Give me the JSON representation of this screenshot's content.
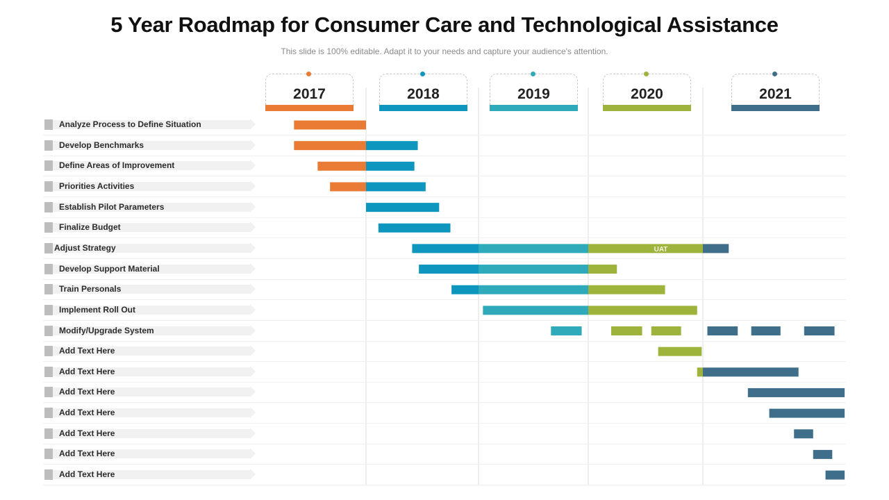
{
  "title": "5 Year Roadmap for Consumer Care and Technological Assistance",
  "subtitle": "This slide is 100% editable. Adapt it to your needs and capture your audience's attention.",
  "chart_data": {
    "type": "gantt",
    "title": "5 Year Roadmap for Consumer Care and Technological Assistance",
    "x_unit": "year",
    "xlim": [
      2017,
      2022.3
    ],
    "grid": "vertical lines at year boundaries 2018, 2019, 2020, 2021",
    "years": [
      {
        "label": "2017",
        "color": "#E97B34"
      },
      {
        "label": "2018",
        "color": "#0E96BE"
      },
      {
        "label": "2019",
        "color": "#2FAABB"
      },
      {
        "label": "2020",
        "color": "#9DB33C"
      },
      {
        "label": "2021",
        "color": "#3E6E8A"
      }
    ],
    "tasks": [
      {
        "label": "Analyze Process to Define Situation",
        "segments": [
          {
            "start": 2017.36,
            "end": 2018.0,
            "color": "#E97B34"
          }
        ]
      },
      {
        "label": "Develop Benchmarks",
        "segments": [
          {
            "start": 2017.36,
            "end": 2018.0,
            "color": "#E97B34"
          },
          {
            "start": 2018.0,
            "end": 2018.46,
            "color": "#0E96BE"
          }
        ]
      },
      {
        "label": "Define Areas of Improvement",
        "segments": [
          {
            "start": 2017.57,
            "end": 2018.0,
            "color": "#E97B34"
          },
          {
            "start": 2018.0,
            "end": 2018.43,
            "color": "#0E96BE"
          }
        ]
      },
      {
        "label": "Priorities Activities",
        "segments": [
          {
            "start": 2017.68,
            "end": 2018.0,
            "color": "#E97B34"
          },
          {
            "start": 2018.0,
            "end": 2018.53,
            "color": "#0E96BE"
          }
        ]
      },
      {
        "label": "Establish Pilot Parameters",
        "segments": [
          {
            "start": 2018.0,
            "end": 2018.65,
            "color": "#0E96BE"
          }
        ]
      },
      {
        "label": "Finalize Budget",
        "segments": [
          {
            "start": 2018.11,
            "end": 2018.75,
            "color": "#0E96BE"
          }
        ]
      },
      {
        "label": "Adjust Strategy",
        "segments": [
          {
            "start": 2018.41,
            "end": 2019.0,
            "color": "#0E96BE"
          },
          {
            "start": 2019.0,
            "end": 2020.0,
            "color": "#2FAABB"
          },
          {
            "start": 2020.0,
            "end": 2021.0,
            "color": "#9DB33C",
            "text": "UAT"
          },
          {
            "start": 2021.0,
            "end": 2021.23,
            "color": "#3E6E8A"
          }
        ]
      },
      {
        "label": "Develop Support Material",
        "segments": [
          {
            "start": 2018.47,
            "end": 2019.0,
            "color": "#0E96BE"
          },
          {
            "start": 2019.0,
            "end": 2020.0,
            "color": "#2FAABB"
          },
          {
            "start": 2020.0,
            "end": 2020.25,
            "color": "#9DB33C"
          }
        ]
      },
      {
        "label": "Train Personals",
        "segments": [
          {
            "start": 2018.76,
            "end": 2019.0,
            "color": "#0E96BE"
          },
          {
            "start": 2019.0,
            "end": 2020.0,
            "color": "#2FAABB"
          },
          {
            "start": 2020.0,
            "end": 2020.67,
            "color": "#9DB33C"
          }
        ]
      },
      {
        "label": "Implement Roll Out",
        "segments": [
          {
            "start": 2019.04,
            "end": 2020.0,
            "color": "#2FAABB"
          },
          {
            "start": 2020.0,
            "end": 2020.95,
            "color": "#9DB33C"
          }
        ]
      },
      {
        "label": "Modify/Upgrade  System",
        "segments": [
          {
            "start": 2019.66,
            "end": 2019.94,
            "color": "#2FAABB"
          },
          {
            "start": 2020.2,
            "end": 2020.47,
            "color": "#9DB33C"
          },
          {
            "start": 2020.55,
            "end": 2020.81,
            "color": "#9DB33C"
          },
          {
            "start": 2021.04,
            "end": 2021.31,
            "color": "#3E6E8A"
          },
          {
            "start": 2021.43,
            "end": 2021.69,
            "color": "#3E6E8A"
          },
          {
            "start": 2021.9,
            "end": 2022.17,
            "color": "#3E6E8A"
          }
        ]
      },
      {
        "label": "Add Text Here",
        "segments": [
          {
            "start": 2020.61,
            "end": 2020.99,
            "color": "#9DB33C"
          }
        ]
      },
      {
        "label": "Add Text Here",
        "segments": [
          {
            "start": 2020.95,
            "end": 2021.0,
            "color": "#9DB33C"
          },
          {
            "start": 2021.0,
            "end": 2021.85,
            "color": "#3E6E8A"
          }
        ]
      },
      {
        "label": "Add Text Here",
        "segments": [
          {
            "start": 2021.4,
            "end": 2022.26,
            "color": "#3E6E8A"
          }
        ]
      },
      {
        "label": "Add Text Here",
        "segments": [
          {
            "start": 2021.59,
            "end": 2022.26,
            "color": "#3E6E8A"
          }
        ]
      },
      {
        "label": "Add Text Here",
        "segments": [
          {
            "start": 2021.81,
            "end": 2021.98,
            "color": "#3E6E8A"
          }
        ]
      },
      {
        "label": "Add Text Here",
        "segments": [
          {
            "start": 2021.98,
            "end": 2022.15,
            "color": "#3E6E8A"
          }
        ]
      },
      {
        "label": "Add Text Here",
        "segments": [
          {
            "start": 2022.09,
            "end": 2022.26,
            "color": "#3E6E8A"
          }
        ]
      }
    ]
  }
}
